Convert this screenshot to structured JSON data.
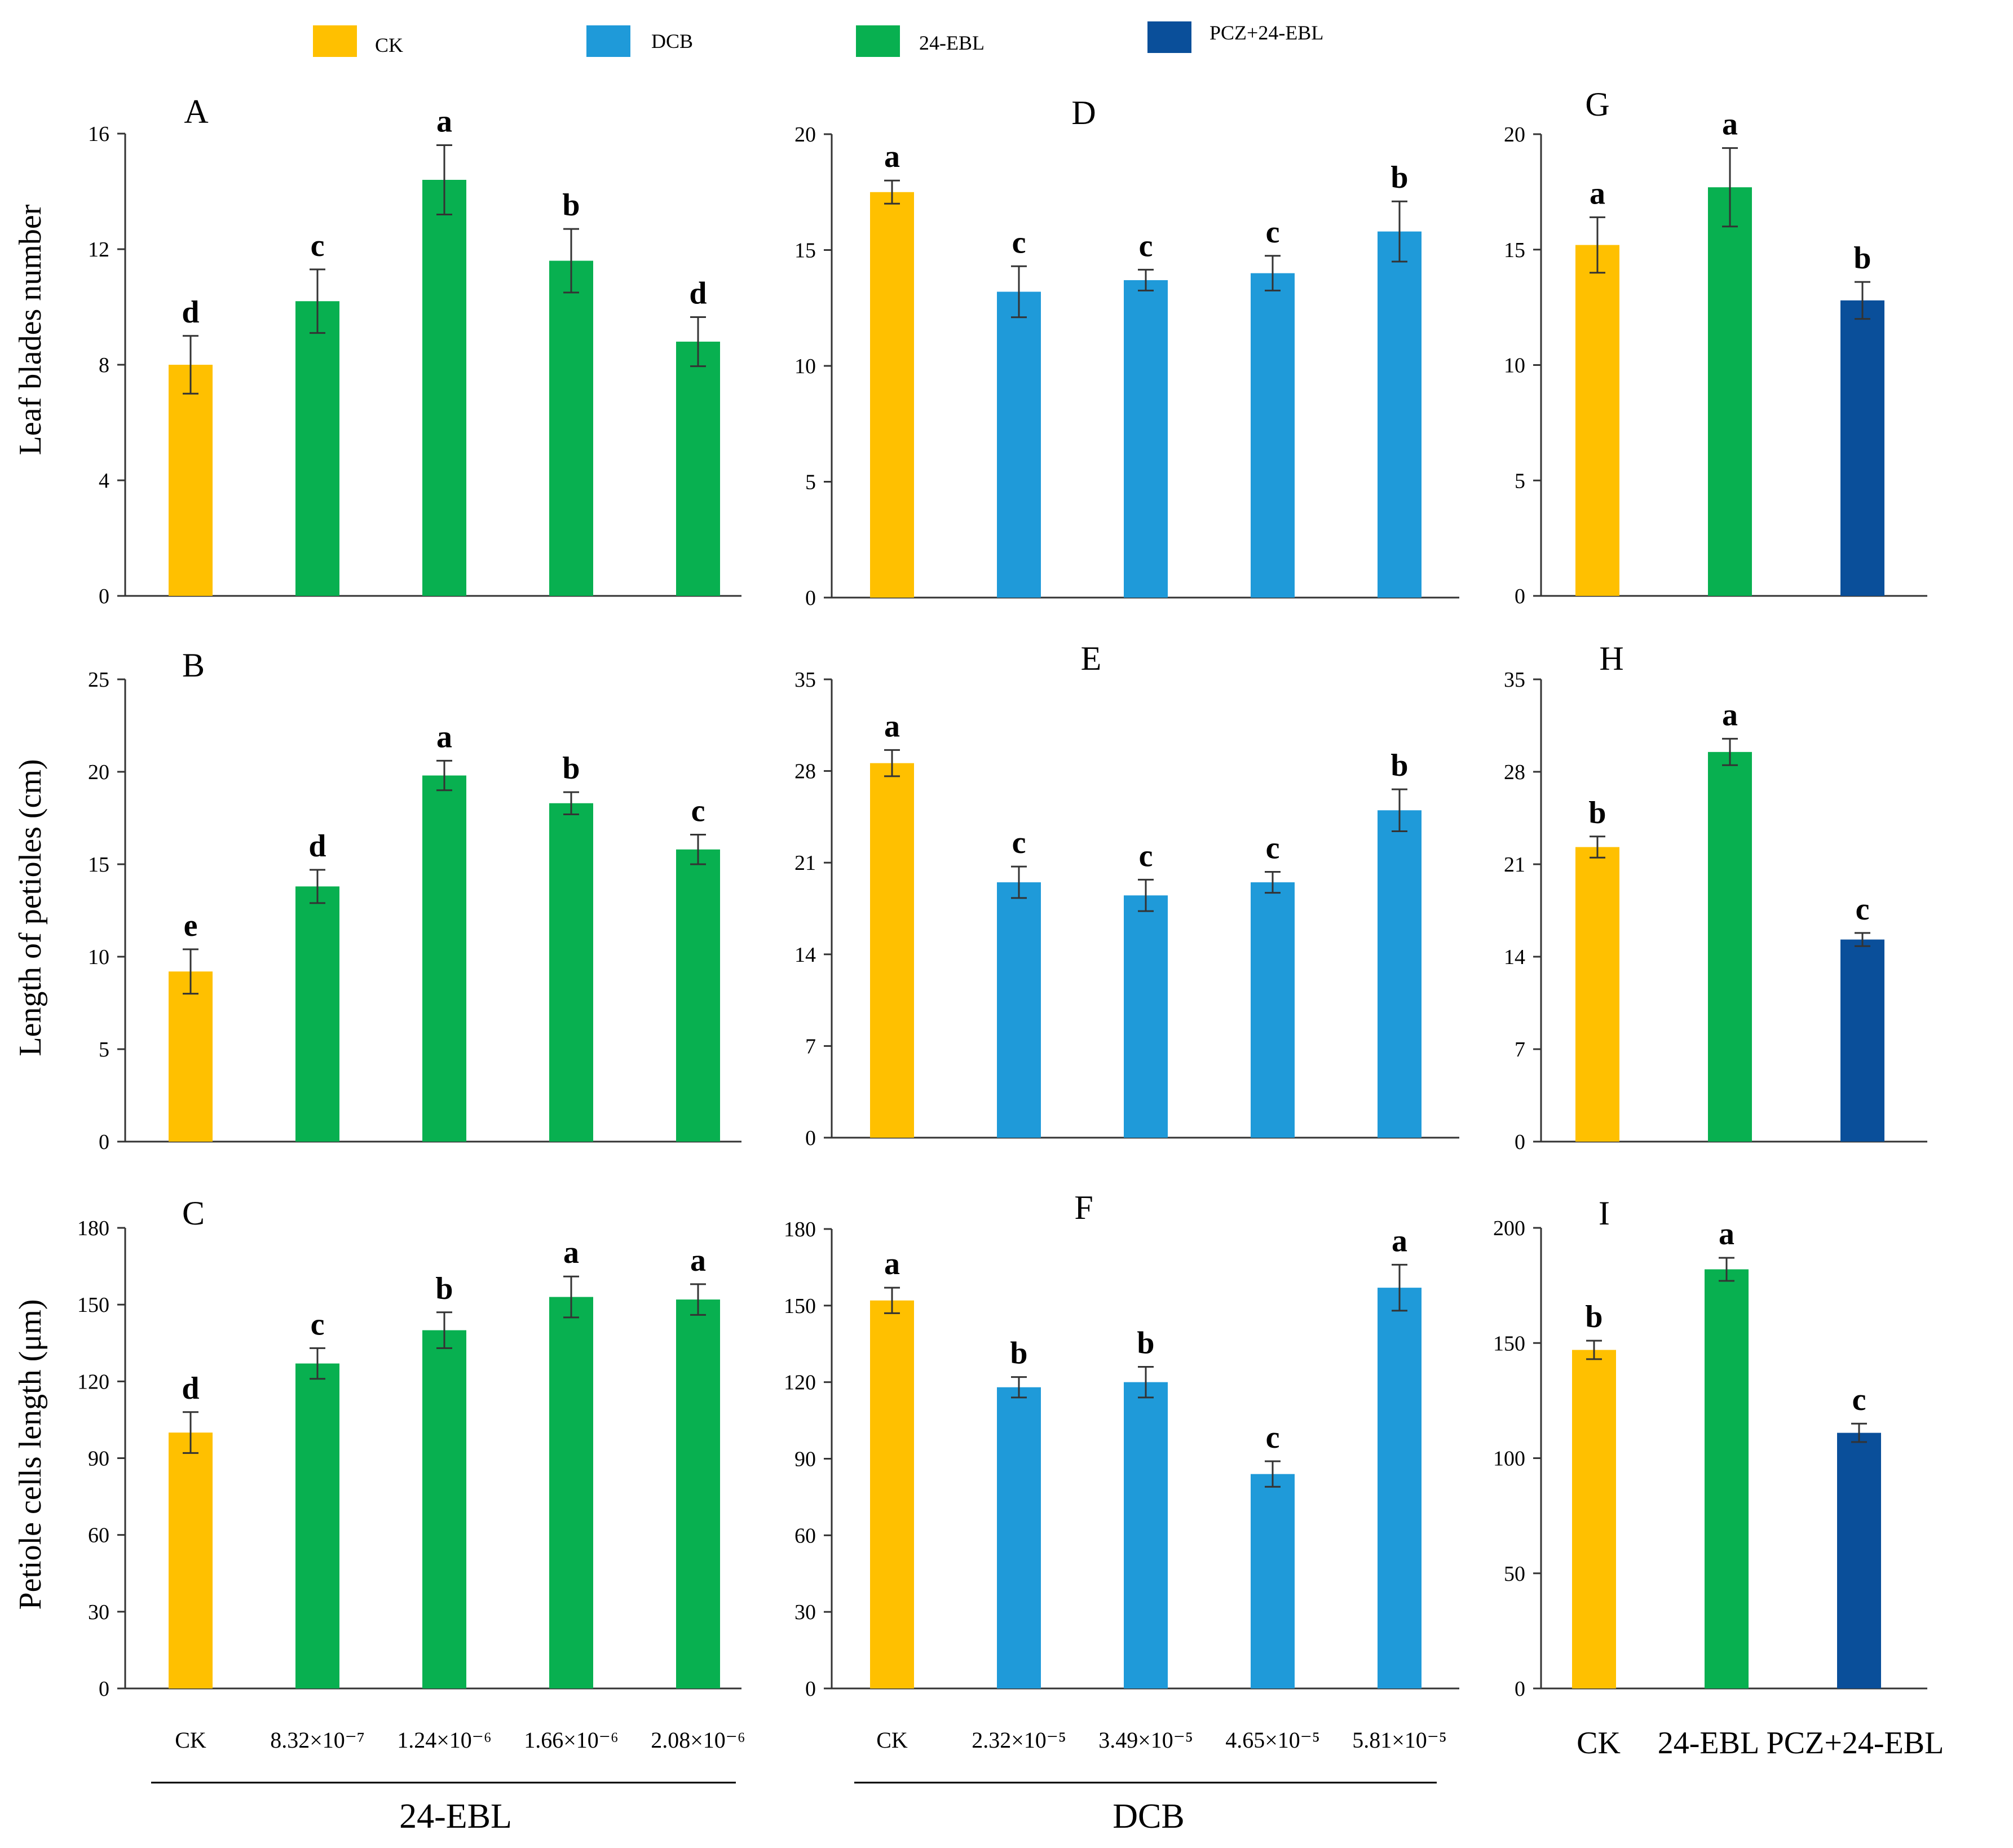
{
  "colors": {
    "ck": "#FFC000",
    "dcb": "#1F9AD9",
    "ebl": "#08B050",
    "pcz": "#0A4F9A"
  },
  "legend": [
    {
      "label": "CK",
      "color_key": "ck"
    },
    {
      "label": "DCB",
      "color_key": "dcb"
    },
    {
      "label": "24-EBL",
      "color_key": "ebl"
    },
    {
      "label": "PCZ+24-EBL",
      "color_key": "pcz"
    }
  ],
  "row_ylabels": [
    "Leaf blades number",
    "Length of petioles (cm)",
    "Petiole cells length (μm)"
  ],
  "group_labels": [
    "24-EBL",
    "DCB"
  ],
  "chart_data": [
    {
      "type": "bar",
      "panel": "A",
      "ylim": [
        0,
        16
      ],
      "yticks": [
        "0",
        "4",
        "8",
        "12",
        "16"
      ],
      "categories": [
        "CK",
        "8.32×10⁻⁷",
        "1.24×10⁻⁶",
        "1.66×10⁻⁶",
        "2.08×10⁻⁶"
      ],
      "values": [
        8.0,
        10.2,
        14.4,
        11.6,
        8.8
      ],
      "errors": [
        1.0,
        1.1,
        1.2,
        1.1,
        0.85
      ],
      "letters": [
        "d",
        "c",
        "a",
        "b",
        "d"
      ],
      "colors": [
        "ck",
        "ebl",
        "ebl",
        "ebl",
        "ebl"
      ]
    },
    {
      "type": "bar",
      "panel": "B",
      "ylim": [
        0,
        25
      ],
      "yticks": [
        "0",
        "5",
        "10",
        "15",
        "20",
        "25"
      ],
      "categories": [
        "CK",
        "8.32×10⁻⁷",
        "1.24×10⁻⁶",
        "1.66×10⁻⁶",
        "2.08×10⁻⁶"
      ],
      "values": [
        9.2,
        13.8,
        19.8,
        18.3,
        15.8
      ],
      "errors": [
        1.2,
        0.9,
        0.8,
        0.6,
        0.8
      ],
      "letters": [
        "e",
        "d",
        "a",
        "b",
        "c"
      ],
      "colors": [
        "ck",
        "ebl",
        "ebl",
        "ebl",
        "ebl"
      ]
    },
    {
      "type": "bar",
      "panel": "C",
      "ylim": [
        0,
        180
      ],
      "yticks": [
        "0",
        "30",
        "60",
        "90",
        "120",
        "150",
        "180"
      ],
      "categories": [
        "CK",
        "8.32×10⁻⁷",
        "1.24×10⁻⁶",
        "1.66×10⁻⁶",
        "2.08×10⁻⁶"
      ],
      "values": [
        100,
        127,
        140,
        153,
        152
      ],
      "errors": [
        8,
        6,
        7,
        8,
        6
      ],
      "letters": [
        "d",
        "c",
        "b",
        "a",
        "a"
      ],
      "colors": [
        "ck",
        "ebl",
        "ebl",
        "ebl",
        "ebl"
      ]
    },
    {
      "type": "bar",
      "panel": "D",
      "ylim": [
        0,
        20
      ],
      "yticks": [
        "0",
        "5",
        "10",
        "15",
        "20"
      ],
      "categories": [
        "CK",
        "2.32×10⁻⁵",
        "3.49×10⁻⁵",
        "4.65×10⁻⁵",
        "5.81×10⁻⁵"
      ],
      "values": [
        17.5,
        13.2,
        13.7,
        14.0,
        15.8
      ],
      "errors": [
        0.5,
        1.1,
        0.45,
        0.75,
        1.3
      ],
      "letters": [
        "a",
        "c",
        "c",
        "c",
        "b"
      ],
      "colors": [
        "ck",
        "dcb",
        "dcb",
        "dcb",
        "dcb"
      ]
    },
    {
      "type": "bar",
      "panel": "E",
      "ylim": [
        0,
        35
      ],
      "yticks": [
        "0",
        "7",
        "14",
        "21",
        "28",
        "35"
      ],
      "categories": [
        "CK",
        "2.32×10⁻⁵",
        "3.49×10⁻⁵",
        "4.65×10⁻⁵",
        "5.81×10⁻⁵"
      ],
      "values": [
        28.6,
        19.5,
        18.5,
        19.5,
        25.0
      ],
      "errors": [
        1.0,
        1.2,
        1.2,
        0.8,
        1.6
      ],
      "letters": [
        "a",
        "c",
        "c",
        "c",
        "b"
      ],
      "colors": [
        "ck",
        "dcb",
        "dcb",
        "dcb",
        "dcb"
      ]
    },
    {
      "type": "bar",
      "panel": "F",
      "ylim": [
        0,
        180
      ],
      "yticks": [
        "0",
        "30",
        "60",
        "90",
        "120",
        "150",
        "180"
      ],
      "categories": [
        "CK",
        "2.32×10⁻⁵",
        "3.49×10⁻⁵",
        "4.65×10⁻⁵",
        "5.81×10⁻⁵"
      ],
      "values": [
        152,
        118,
        120,
        84,
        157
      ],
      "errors": [
        5,
        4,
        6,
        5,
        9
      ],
      "letters": [
        "a",
        "b",
        "b",
        "c",
        "a"
      ],
      "colors": [
        "ck",
        "dcb",
        "dcb",
        "dcb",
        "dcb"
      ]
    },
    {
      "type": "bar",
      "panel": "G",
      "ylim": [
        0,
        20
      ],
      "yticks": [
        "0",
        "5",
        "10",
        "15",
        "20"
      ],
      "categories": [
        "CK",
        "24-EBL",
        "PCZ+24-EBL"
      ],
      "values": [
        15.2,
        17.7,
        12.8
      ],
      "errors": [
        1.2,
        1.7,
        0.8
      ],
      "letters": [
        "a",
        "a",
        "b"
      ],
      "colors": [
        "ck",
        "ebl",
        "pcz"
      ]
    },
    {
      "type": "bar",
      "panel": "H",
      "ylim": [
        0,
        35
      ],
      "yticks": [
        "0",
        "7",
        "14",
        "21",
        "28",
        "35"
      ],
      "categories": [
        "CK",
        "24-EBL",
        "PCZ+24-EBL"
      ],
      "values": [
        22.3,
        29.5,
        15.3
      ],
      "errors": [
        0.8,
        1.0,
        0.5
      ],
      "letters": [
        "b",
        "a",
        "c"
      ],
      "colors": [
        "ck",
        "ebl",
        "pcz"
      ]
    },
    {
      "type": "bar",
      "panel": "I",
      "ylim": [
        0,
        200
      ],
      "yticks": [
        "0",
        "50",
        "100",
        "150",
        "200"
      ],
      "categories": [
        "CK",
        "24-EBL",
        "PCZ+24-EBL"
      ],
      "values": [
        147,
        182,
        111
      ],
      "errors": [
        4,
        5,
        4
      ],
      "letters": [
        "b",
        "a",
        "c"
      ],
      "colors": [
        "ck",
        "ebl",
        "pcz"
      ]
    }
  ]
}
